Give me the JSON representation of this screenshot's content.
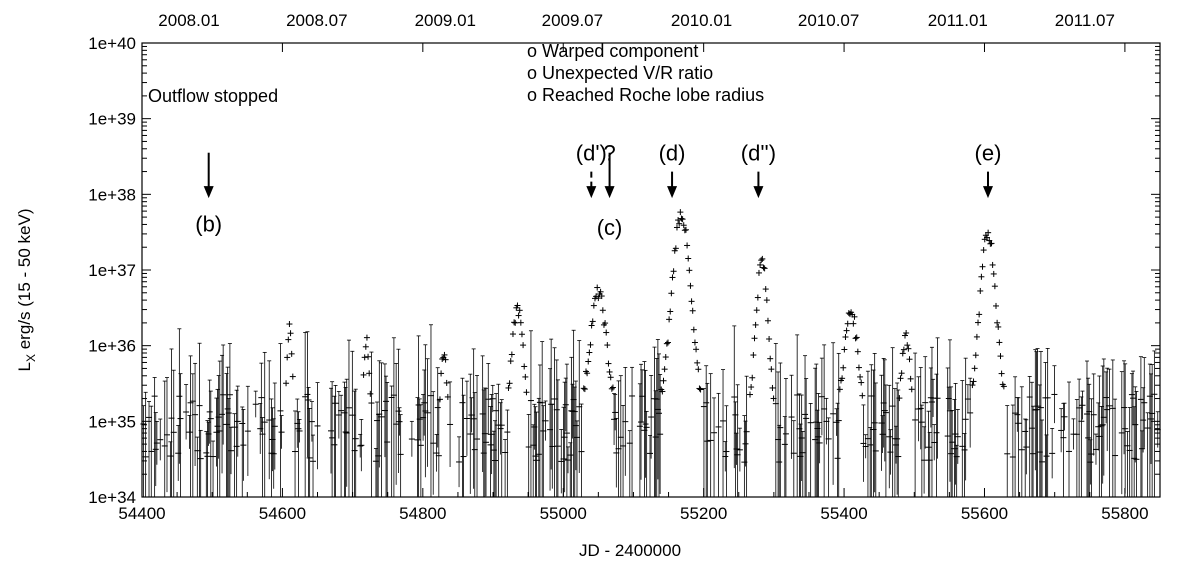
{
  "chart_data": {
    "type": "scatter",
    "xlabel": "JD - 2400000",
    "ylabel_main": "L",
    "ylabel_sub": "X",
    "ylabel_rest": " erg/s (15 - 50 keV)",
    "xlim": [
      54400,
      55850
    ],
    "ylim_log10": [
      34,
      40
    ],
    "y_scale": "log",
    "x_ticks": [
      "54400",
      "54600",
      "54800",
      "55000",
      "55200",
      "55400",
      "55600",
      "55800"
    ],
    "x_tick_values": [
      54400,
      54600,
      54800,
      55000,
      55200,
      55400,
      55600,
      55800
    ],
    "y_ticks": [
      "1e+34",
      "1e+35",
      "1e+36",
      "1e+37",
      "1e+38",
      "1e+39",
      "1e+40"
    ],
    "y_tick_exponents": [
      34,
      35,
      36,
      37,
      38,
      39,
      40
    ],
    "top_axis_ticks": [
      "2008.01",
      "2008.07",
      "2009.01",
      "2009.07",
      "2010.01",
      "2010.07",
      "2011.01",
      "2011.07"
    ],
    "top_axis_tick_jd": [
      54467,
      54649,
      54832,
      55013,
      55197,
      55378,
      55562,
      55743
    ],
    "legend_lines": [
      "o Warped component",
      "o Unexpected V/R ratio",
      "o Reached Roche lobe radius"
    ],
    "annotations": [
      {
        "label": "(b)",
        "x": 54495,
        "text_y_log": 37.75,
        "arrow_from_log": 38.55,
        "arrow_to_log": 37.95,
        "style": "solid",
        "label_pos": "below"
      },
      {
        "label": "(d')",
        "x": 55040,
        "text_y_log": 38.55,
        "arrow_from_log": 38.3,
        "arrow_to_log": 37.95,
        "style": "dashed",
        "label_pos": "above"
      },
      {
        "label": "?",
        "x": 55066,
        "text_y_log": 38.55,
        "arrow_from_log": 38.3,
        "arrow_to_log": 38.05,
        "style": "none",
        "label_pos": "above"
      },
      {
        "label": "(c)",
        "x": 55066,
        "text_y_log": 37.7,
        "arrow_from_log": 38.55,
        "arrow_to_log": 37.95,
        "style": "solid",
        "label_pos": "below"
      },
      {
        "label": "(d)",
        "x": 55155,
        "text_y_log": 38.55,
        "arrow_from_log": 38.3,
        "arrow_to_log": 37.95,
        "style": "solid",
        "label_pos": "above"
      },
      {
        "label": "(d'')",
        "x": 55278,
        "text_y_log": 38.55,
        "arrow_from_log": 38.3,
        "arrow_to_log": 37.95,
        "style": "solid",
        "label_pos": "above"
      },
      {
        "label": "(e)",
        "x": 55605,
        "text_y_log": 38.55,
        "arrow_from_log": 38.3,
        "arrow_to_log": 37.95,
        "style": "solid",
        "label_pos": "above"
      }
    ],
    "outflow_label": "Outflow stopped",
    "outbursts": [
      {
        "center": 54935,
        "peak_log": 36.5,
        "width": 8
      },
      {
        "center": 55050,
        "peak_log": 36.7,
        "width": 12
      },
      {
        "center": 55168,
        "peak_log": 37.75,
        "width": 14
      },
      {
        "center": 55283,
        "peak_log": 37.12,
        "width": 9
      },
      {
        "center": 55410,
        "peak_log": 36.45,
        "width": 10
      },
      {
        "center": 55488,
        "peak_log": 36.15,
        "width": 6
      },
      {
        "center": 55605,
        "peak_log": 37.5,
        "width": 12
      },
      {
        "center": 54720,
        "peak_log": 36.05,
        "width": 4
      },
      {
        "center": 54830,
        "peak_log": 35.95,
        "width": 4
      },
      {
        "center": 54610,
        "peak_log": 36.2,
        "width": 4
      }
    ],
    "baseline_log": 35.0,
    "grid": false,
    "legend_position": "top-center"
  }
}
